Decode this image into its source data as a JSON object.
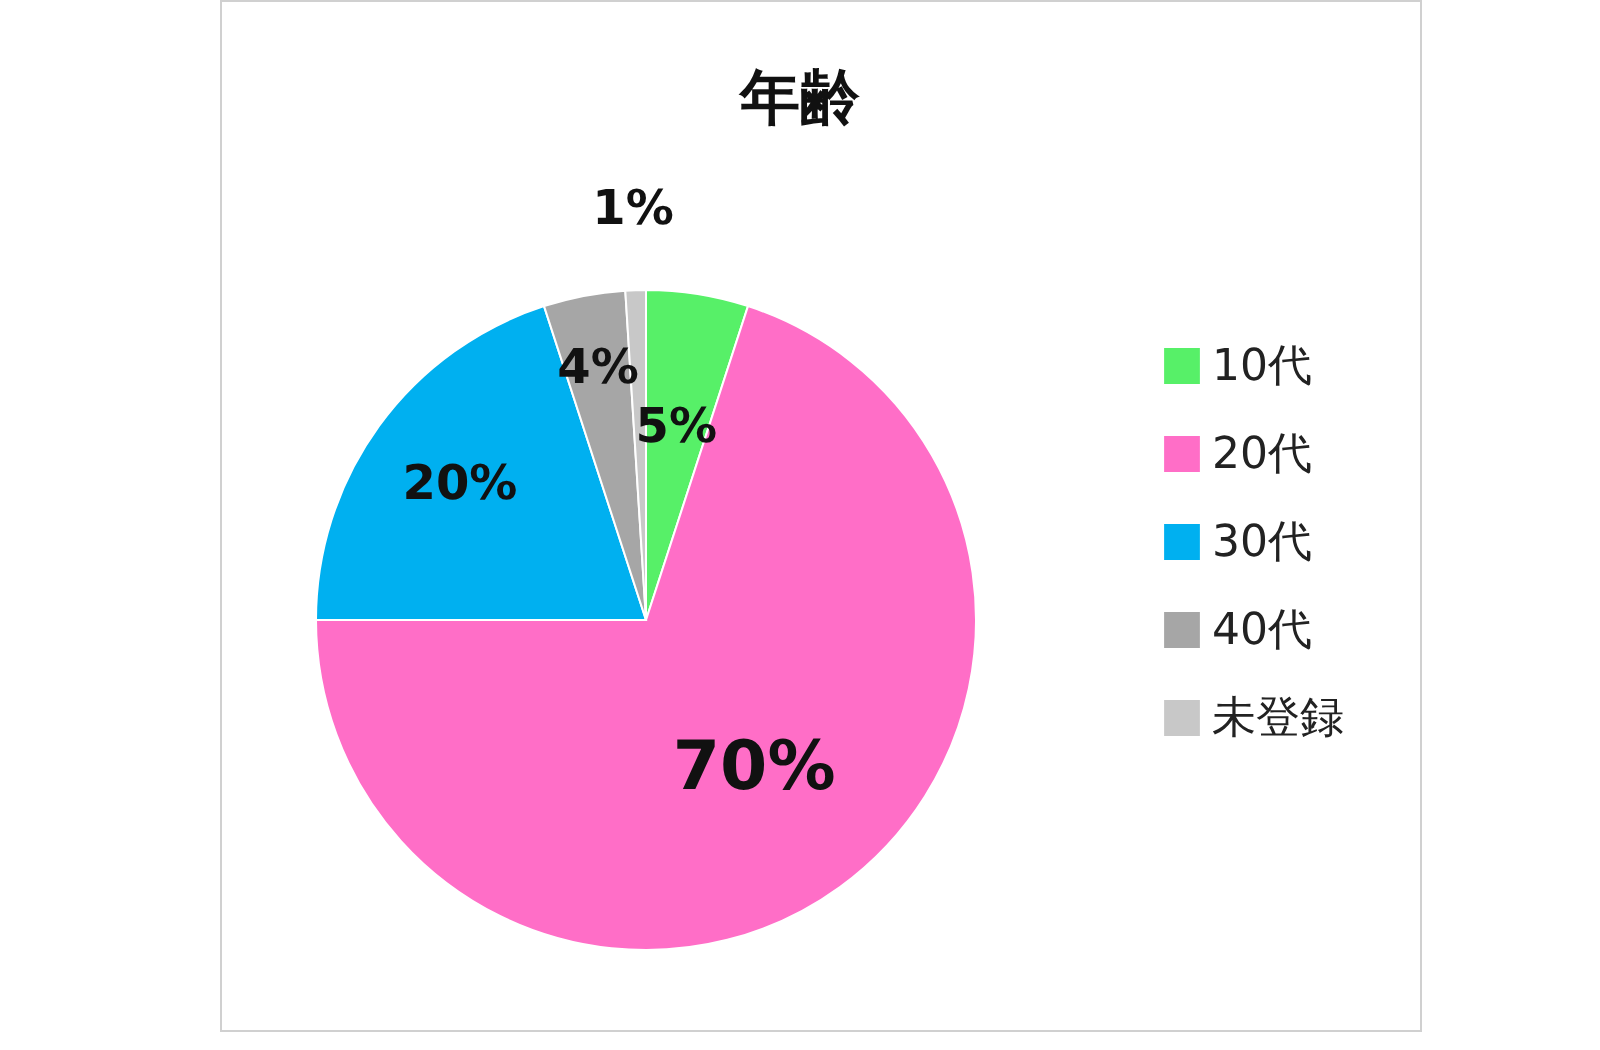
{
  "chart_data": {
    "type": "pie",
    "title": "年齢",
    "categories": [
      "10代",
      "20代",
      "30代",
      "40代",
      "未登録"
    ],
    "values": [
      5,
      70,
      20,
      4,
      1
    ],
    "colors": [
      "#57f068",
      "#ff6ec7",
      "#00b0f0",
      "#a6a6a6",
      "#c8c8c8"
    ],
    "value_labels": [
      "5%",
      "70%",
      "20%",
      "4%",
      "1%"
    ],
    "legend": "right"
  }
}
